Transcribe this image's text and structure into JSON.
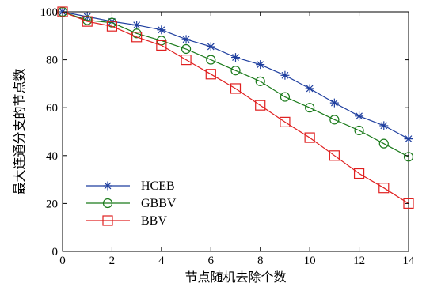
{
  "chart_data": {
    "type": "line",
    "xlabel": "节点随机去除个数",
    "ylabel": "最大连通分支的节点数",
    "xlim": [
      0,
      14
    ],
    "ylim": [
      0,
      100
    ],
    "xticks": [
      0,
      2,
      4,
      6,
      8,
      10,
      12,
      14
    ],
    "yticks": [
      0,
      20,
      40,
      60,
      80,
      100
    ],
    "grid": false,
    "legend_position": "bottom-left",
    "x": [
      0,
      1,
      2,
      3,
      4,
      5,
      6,
      7,
      8,
      9,
      10,
      11,
      12,
      13,
      14
    ],
    "series": [
      {
        "name": "HCEB",
        "color": "#1f3f9f",
        "marker": "star",
        "values": [
          100,
          98,
          96,
          94.5,
          92.5,
          88.5,
          85.5,
          81,
          78,
          73.5,
          68,
          62,
          56.5,
          52.5,
          47
        ]
      },
      {
        "name": "GBBV",
        "color": "#1a7a1a",
        "marker": "circle",
        "values": [
          100,
          96.5,
          95.5,
          91,
          88,
          84.5,
          80,
          75.5,
          71,
          64.5,
          60,
          55,
          50.5,
          45,
          39.5
        ]
      },
      {
        "name": "BBV",
        "color": "#e02020",
        "marker": "square",
        "values": [
          100,
          96,
          94,
          89.5,
          86,
          80,
          74,
          68,
          61,
          54,
          47.5,
          40,
          32.5,
          26.5,
          20
        ]
      }
    ]
  }
}
